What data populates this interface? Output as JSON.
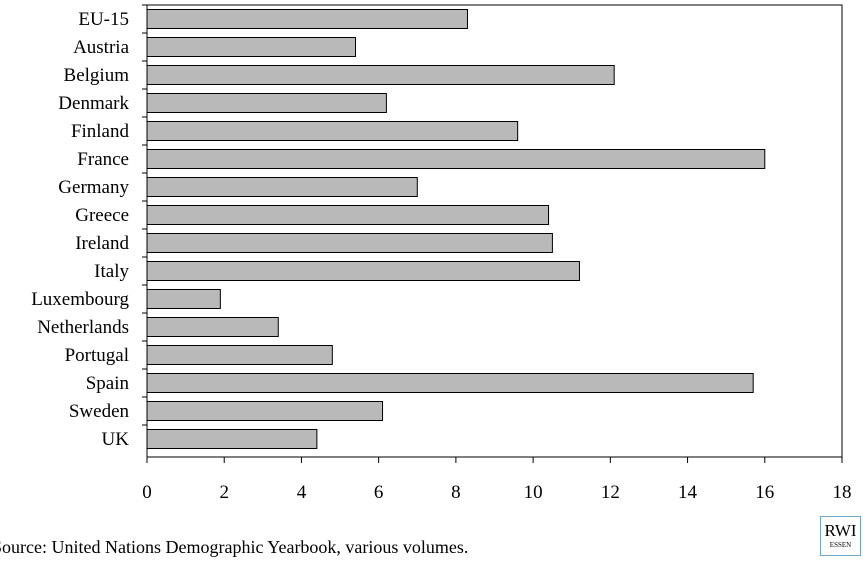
{
  "chart_data": {
    "type": "bar",
    "orientation": "horizontal",
    "categories": [
      "EU-15",
      "Austria",
      "Belgium",
      "Denmark",
      "Finland",
      "France",
      "Germany",
      "Greece",
      "Ireland",
      "Italy",
      "Luxembourg",
      "Netherlands",
      "Portugal",
      "Spain",
      "Sweden",
      "UK"
    ],
    "values": [
      8.3,
      5.4,
      12.1,
      6.2,
      9.6,
      16.0,
      7.0,
      10.4,
      10.5,
      11.2,
      1.9,
      3.4,
      4.8,
      15.7,
      6.1,
      4.4
    ],
    "xlim": [
      0,
      18
    ],
    "xticks": [
      "0",
      "2",
      "4",
      "6",
      "8",
      "10",
      "12",
      "14",
      "16",
      "18"
    ],
    "grid": false,
    "bar_color": "#b9b9b9",
    "title": "",
    "xlabel": "",
    "ylabel": ""
  },
  "footer": {
    "source": "Source: United Nations Demographic Yearbook, various volumes.",
    "logo_main": "RWI",
    "logo_sub": "ESSEN"
  }
}
